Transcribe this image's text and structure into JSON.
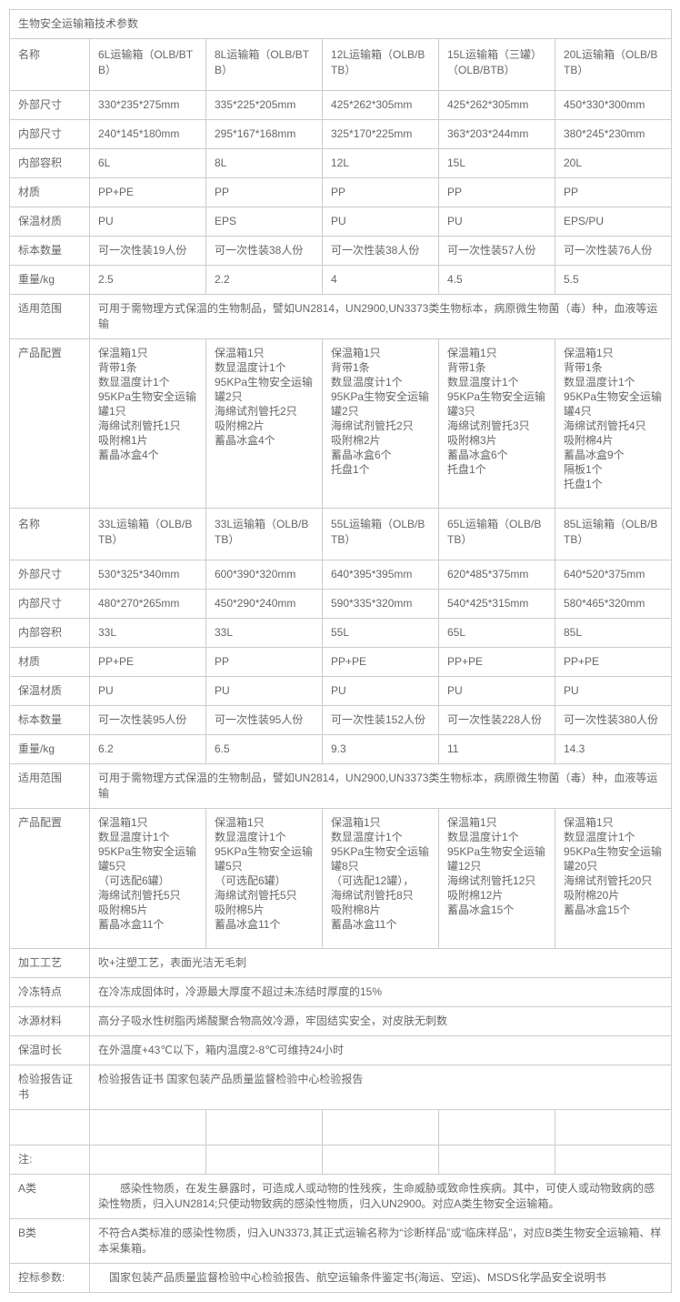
{
  "title": "生物安全运输箱技术参数",
  "table": {
    "sections": [
      {
        "rows": [
          {
            "type": "cells",
            "label": "名称",
            "cells": [
              "6L运输箱（OLB/BTB）",
              "8L运输箱（OLB/BTB）",
              "12L运输箱（OLB/BTB）",
              "15L运输箱（三罐）（OLB/BTB）",
              "20L运输箱（OLB/BTB）"
            ]
          },
          {
            "type": "cells",
            "label": "外部尺寸",
            "cells": [
              "330*235*275mm",
              "335*225*205mm",
              "425*262*305mm",
              "425*262*305mm",
              "450*330*300mm"
            ]
          },
          {
            "type": "cells",
            "label": "内部尺寸",
            "cells": [
              "240*145*180mm",
              "295*167*168mm",
              "325*170*225mm",
              "363*203*244mm",
              "380*245*230mm"
            ]
          },
          {
            "type": "cells",
            "label": "内部容积",
            "cells": [
              "6L",
              "8L",
              "12L",
              "15L",
              "20L"
            ]
          },
          {
            "type": "cells",
            "label": "材质",
            "cells": [
              "PP+PE",
              "PP",
              "PP",
              "PP",
              "PP"
            ]
          },
          {
            "type": "cells",
            "label": "保温材质",
            "cells": [
              "PU",
              "EPS",
              "PU",
              "PU",
              "EPS/PU"
            ]
          },
          {
            "type": "cells",
            "label": "标本数量",
            "cells": [
              "可一次性装19人份",
              "可一次性装38人份",
              "可一次性装38人份",
              "可一次性装57人份",
              "可一次性装76人份"
            ]
          },
          {
            "type": "cells",
            "label": "重量/kg",
            "cells": [
              "2.5",
              "2.2",
              "4",
              "4.5",
              "5.5"
            ]
          },
          {
            "type": "span",
            "label": "适用范围",
            "text": "可用于需物理方式保温的生物制品，譬如UN2814，UN2900,UN3373类生物标本，病原微生物菌（毒）种，血液等运输"
          },
          {
            "type": "list",
            "label": "产品配置",
            "lists": [
              [
                "保温箱1只",
                "背带1条",
                "数显温度计1个",
                "95KPa生物安全运输罐1只",
                "海绵试剂管托1只",
                "吸附棉1片",
                "蓄晶冰盒4个"
              ],
              [
                "保温箱1只",
                "数显温度计1个",
                "95KPa生物安全运输罐2只",
                "海绵试剂管托2只",
                "吸附棉2片",
                "蓄晶冰盒4个"
              ],
              [
                "保温箱1只",
                "背带1条",
                "数显温度计1个",
                "95KPa生物安全运输罐2只",
                "海绵试剂管托2只",
                "吸附棉2片",
                "蓄晶冰盒6个",
                "托盘1个"
              ],
              [
                "保温箱1只",
                "背带1条",
                "数显温度计1个",
                "95KPa生物安全运输罐3只",
                "海绵试剂管托3只",
                "吸附棉3片",
                "蓄晶冰盒6个",
                "托盘1个"
              ],
              [
                "保温箱1只",
                "背带1条",
                "数显温度计1个",
                "95KPa生物安全运输罐4只",
                "海绵试剂管托4只",
                "吸附棉4片",
                "蓄晶冰盒9个",
                "隔板1个",
                "托盘1个"
              ]
            ]
          }
        ]
      },
      {
        "rows": [
          {
            "type": "cells",
            "label": "名称",
            "cells": [
              "33L运输箱（OLB/BTB）",
              "33L运输箱（OLB/BTB）",
              "55L运输箱（OLB/BTB）",
              "65L运输箱（OLB/BTB）",
              "85L运输箱（OLB/BTB）"
            ]
          },
          {
            "type": "cells",
            "label": "外部尺寸",
            "cells": [
              "530*325*340mm",
              "600*390*320mm",
              "640*395*395mm",
              "620*485*375mm",
              "640*520*375mm"
            ]
          },
          {
            "type": "cells",
            "label": "内部尺寸",
            "cells": [
              "480*270*265mm",
              "450*290*240mm",
              "590*335*320mm",
              "540*425*315mm",
              "580*465*320mm"
            ]
          },
          {
            "type": "cells",
            "label": "内部容积",
            "cells": [
              "33L",
              "33L",
              "55L",
              "65L",
              "85L"
            ]
          },
          {
            "type": "cells",
            "label": "材质",
            "cells": [
              "PP+PE",
              "PP",
              "PP+PE",
              "PP+PE",
              "PP+PE"
            ]
          },
          {
            "type": "cells",
            "label": "保温材质",
            "cells": [
              "PU",
              "PU",
              "PU",
              "PU",
              "PU"
            ]
          },
          {
            "type": "cells",
            "label": "标本数量",
            "cells": [
              "可一次性装95人份",
              "可一次性装95人份",
              "可一次性装152人份",
              "可一次性装228人份",
              "可一次性装380人份"
            ]
          },
          {
            "type": "cells",
            "label": "重量/kg",
            "cells": [
              "6.2",
              "6.5",
              "9.3",
              "11",
              "14.3"
            ]
          },
          {
            "type": "span",
            "label": "适用范围",
            "text": "可用于需物理方式保温的生物制品，譬如UN2814，UN2900,UN3373类生物标本，病原微生物菌（毒）种，血液等运输"
          },
          {
            "type": "list",
            "label": "产品配置",
            "lists": [
              [
                "保温箱1只",
                "数显温度计1个",
                "95KPa生物安全运输罐5只",
                "（可选配6罐）",
                "海绵试剂管托5只",
                "吸附棉5片",
                "蓄晶冰盒11个"
              ],
              [
                "保温箱1只",
                "数显温度计1个",
                "95KPa生物安全运输罐5只",
                "（可选配6罐）",
                "海绵试剂管托5只",
                "吸附棉5片",
                "蓄晶冰盒11个"
              ],
              [
                "保温箱1只",
                "数显温度计1个",
                "95KPa生物安全运输罐8只",
                "（可选配12罐），",
                "海绵试剂管托8只",
                "吸附棉8片",
                "蓄晶冰盒11个"
              ],
              [
                "保温箱1只",
                "数显温度计1个",
                "95KPa生物安全运输罐12只",
                "海绵试剂管托12只",
                "吸附棉12片",
                "蓄晶冰盒15个"
              ],
              [
                "保温箱1只",
                "数显温度计1个",
                "95KPa生物安全运输罐20只",
                "海绵试剂管托20只",
                "吸附棉20片",
                "蓄晶冰盒15个"
              ]
            ]
          }
        ]
      }
    ],
    "info_rows": [
      {
        "label": "加工工艺",
        "text": "吹+注塑工艺，表面光洁无毛刺"
      },
      {
        "label": "冷冻特点",
        "text": "在冷冻成固体时，冷源最大厚度不超过未冻结时厚度的15%"
      },
      {
        "label": "冰源材料",
        "text": "高分子吸水性树脂丙烯酸聚合物高效冷源，牢固结实安全，对皮肤无刺数"
      },
      {
        "label": "保温时长",
        "text": "在外温度+43℃以下，箱内温度2-8℃可维持24小时"
      },
      {
        "label": "检验报告证书",
        "text": "检验报告证书 国家包装产品质量监督检验中心检验报告"
      }
    ],
    "notes": [
      {
        "type": "cells",
        "label": "",
        "cells": [
          "",
          "",
          "",
          "",
          ""
        ]
      },
      {
        "type": "cells",
        "label": "注:",
        "cells": [
          "",
          "",
          "",
          "",
          ""
        ]
      },
      {
        "type": "span",
        "label": "A类",
        "text": "　　感染性物质，在发生暴露时，可造成人或动物的性残疾，生命威胁或致命性疾病。其中，可使人或动物致病的感染性物质，归入UN2814;只使动物致病的感染性物质，归入UN2900。对应A类生物安全运输箱。"
      },
      {
        "type": "span",
        "label": "B类",
        "text": "不符合A类标准的感染性物质，归入UN3373,其正式运输名称为“诊断样品”或“临床样品”，对应B类生物安全运输箱、样本采集箱。"
      },
      {
        "type": "span",
        "label": "控标参数:",
        "text": "　国家包装产品质量监督检验中心检验报告、航空运输条件鉴定书(海运、空运)、MSDS化学品安全说明书"
      }
    ]
  }
}
